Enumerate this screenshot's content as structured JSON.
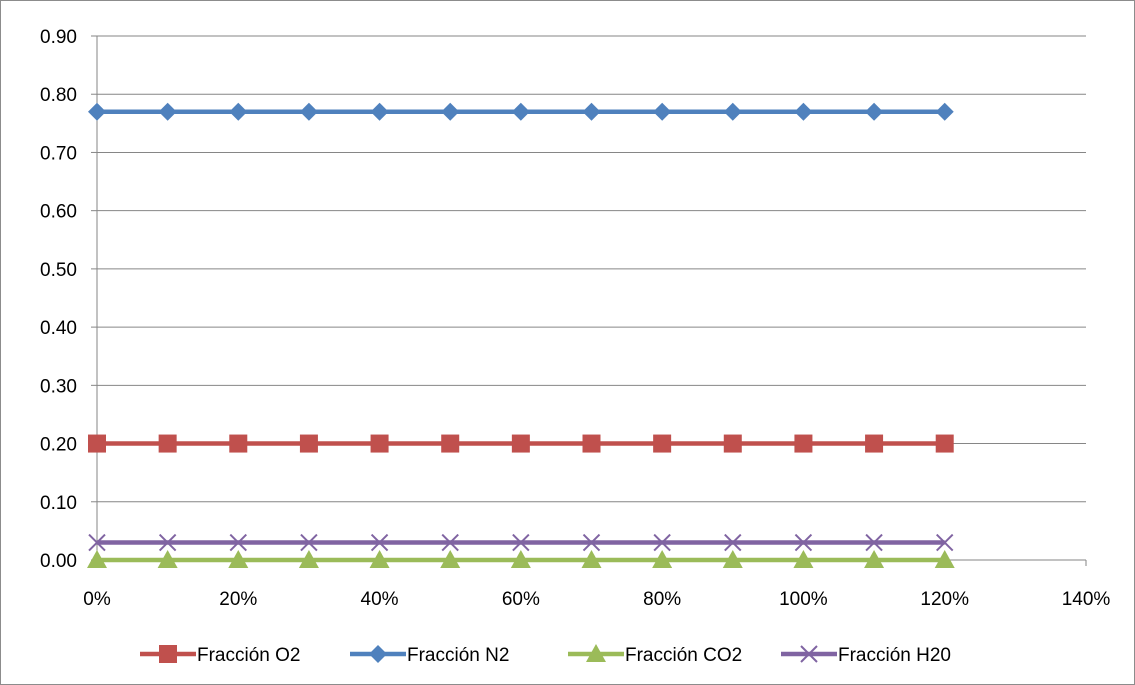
{
  "chart_data": {
    "type": "line",
    "title": "",
    "xlabel": "",
    "ylabel": "",
    "x": [
      0,
      10,
      20,
      30,
      40,
      50,
      60,
      70,
      80,
      90,
      100,
      110,
      120
    ],
    "xlim": [
      0,
      140
    ],
    "x_ticks": [
      0,
      20,
      40,
      60,
      80,
      100,
      120,
      140
    ],
    "x_tick_labels": [
      "0%",
      "20%",
      "40%",
      "60%",
      "80%",
      "100%",
      "120%",
      "140%"
    ],
    "ylim": [
      0,
      0.9
    ],
    "y_ticks": [
      0,
      0.1,
      0.2,
      0.3,
      0.4,
      0.5,
      0.6,
      0.7,
      0.8,
      0.9
    ],
    "y_tick_labels": [
      "0.00",
      "0.10",
      "0.20",
      "0.30",
      "0.40",
      "0.50",
      "0.60",
      "0.70",
      "0.80",
      "0.90"
    ],
    "grid": "horizontal",
    "legend_position": "bottom",
    "series": [
      {
        "name": "Fracción O2",
        "color": "#C0504D",
        "marker": "square",
        "values": [
          0.2,
          0.2,
          0.2,
          0.2,
          0.2,
          0.2,
          0.2,
          0.2,
          0.2,
          0.2,
          0.2,
          0.2,
          0.2
        ]
      },
      {
        "name": "Fracción N2",
        "color": "#4F81BD",
        "marker": "diamond",
        "values": [
          0.77,
          0.77,
          0.77,
          0.77,
          0.77,
          0.77,
          0.77,
          0.77,
          0.77,
          0.77,
          0.77,
          0.77,
          0.77
        ]
      },
      {
        "name": "Fracción CO2",
        "color": "#9BBB59",
        "marker": "triangle",
        "values": [
          0,
          0,
          0,
          0,
          0,
          0,
          0,
          0,
          0,
          0,
          0,
          0,
          0
        ]
      },
      {
        "name": "Fracción H20",
        "color": "#8064A2",
        "marker": "x",
        "values": [
          0.03,
          0.03,
          0.03,
          0.03,
          0.03,
          0.03,
          0.03,
          0.03,
          0.03,
          0.03,
          0.03,
          0.03,
          0.03
        ]
      }
    ]
  }
}
